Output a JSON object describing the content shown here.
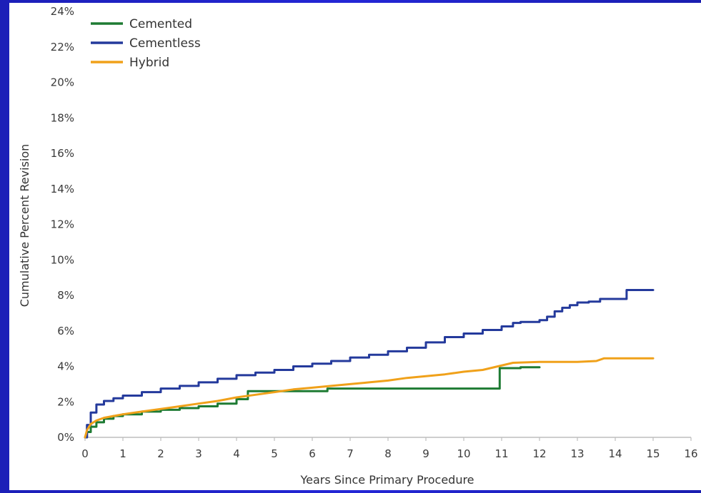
{
  "chart_data": {
    "type": "line",
    "title": "",
    "xlabel": "Years Since Primary Procedure",
    "ylabel": "Cumulative Percent Revision",
    "xlim": [
      0,
      16
    ],
    "ylim": [
      0,
      24
    ],
    "x_ticks": [
      "0",
      "1",
      "2",
      "3",
      "4",
      "5",
      "6",
      "7",
      "8",
      "9",
      "10",
      "11",
      "12",
      "13",
      "14",
      "15",
      "16"
    ],
    "y_ticks": [
      "0%",
      "2%",
      "4%",
      "6%",
      "8%",
      "10%",
      "12%",
      "14%",
      "16%",
      "18%",
      "20%",
      "22%",
      "24%"
    ],
    "grid": false,
    "legend_position": "top-left",
    "series": [
      {
        "name": "Cemented",
        "color": "#1e7b33",
        "step": true,
        "points": [
          [
            0,
            0
          ],
          [
            0.05,
            0.3
          ],
          [
            0.15,
            0.6
          ],
          [
            0.3,
            0.85
          ],
          [
            0.5,
            1.05
          ],
          [
            0.75,
            1.2
          ],
          [
            1,
            1.3
          ],
          [
            1.5,
            1.45
          ],
          [
            2,
            1.55
          ],
          [
            2.5,
            1.65
          ],
          [
            3,
            1.75
          ],
          [
            3.5,
            1.9
          ],
          [
            4,
            2.15
          ],
          [
            4.3,
            2.6
          ],
          [
            5,
            2.6
          ],
          [
            6,
            2.6
          ],
          [
            6.4,
            2.75
          ],
          [
            7,
            2.75
          ],
          [
            8,
            2.75
          ],
          [
            9,
            2.75
          ],
          [
            10,
            2.75
          ],
          [
            10.95,
            2.75
          ],
          [
            10.95,
            3.9
          ],
          [
            11.5,
            3.95
          ],
          [
            12,
            3.95
          ]
        ]
      },
      {
        "name": "Cementless",
        "color": "#243a9c",
        "step": true,
        "points": [
          [
            0,
            0
          ],
          [
            0.05,
            0.7
          ],
          [
            0.15,
            1.4
          ],
          [
            0.3,
            1.85
          ],
          [
            0.5,
            2.05
          ],
          [
            0.75,
            2.2
          ],
          [
            1,
            2.35
          ],
          [
            1.5,
            2.55
          ],
          [
            2,
            2.75
          ],
          [
            2.5,
            2.9
          ],
          [
            3,
            3.1
          ],
          [
            3.5,
            3.3
          ],
          [
            4,
            3.5
          ],
          [
            4.5,
            3.65
          ],
          [
            5,
            3.8
          ],
          [
            5.5,
            4.0
          ],
          [
            6,
            4.15
          ],
          [
            6.5,
            4.3
          ],
          [
            7,
            4.5
          ],
          [
            7.5,
            4.65
          ],
          [
            8,
            4.85
          ],
          [
            8.5,
            5.05
          ],
          [
            9,
            5.35
          ],
          [
            9.5,
            5.65
          ],
          [
            10,
            5.85
          ],
          [
            10.5,
            6.05
          ],
          [
            11,
            6.25
          ],
          [
            11.3,
            6.45
          ],
          [
            11.5,
            6.5
          ],
          [
            11.8,
            6.5
          ],
          [
            12,
            6.6
          ],
          [
            12.2,
            6.8
          ],
          [
            12.4,
            7.1
          ],
          [
            12.6,
            7.3
          ],
          [
            12.8,
            7.45
          ],
          [
            13,
            7.6
          ],
          [
            13.3,
            7.65
          ],
          [
            13.6,
            7.8
          ],
          [
            14,
            7.8
          ],
          [
            14.3,
            7.8
          ],
          [
            14.3,
            8.3
          ],
          [
            14.7,
            8.3
          ],
          [
            15,
            8.3
          ]
        ]
      },
      {
        "name": "Hybrid",
        "color": "#f0a11a",
        "step": false,
        "points": [
          [
            0,
            0
          ],
          [
            0.05,
            0.4
          ],
          [
            0.15,
            0.75
          ],
          [
            0.3,
            0.95
          ],
          [
            0.5,
            1.1
          ],
          [
            0.75,
            1.2
          ],
          [
            1,
            1.3
          ],
          [
            1.5,
            1.45
          ],
          [
            2,
            1.6
          ],
          [
            2.5,
            1.75
          ],
          [
            3,
            1.9
          ],
          [
            3.5,
            2.05
          ],
          [
            4,
            2.25
          ],
          [
            4.5,
            2.4
          ],
          [
            5,
            2.55
          ],
          [
            5.5,
            2.7
          ],
          [
            6,
            2.8
          ],
          [
            6.5,
            2.9
          ],
          [
            7,
            3.0
          ],
          [
            7.5,
            3.1
          ],
          [
            8,
            3.2
          ],
          [
            8.5,
            3.35
          ],
          [
            9,
            3.45
          ],
          [
            9.5,
            3.55
          ],
          [
            10,
            3.7
          ],
          [
            10.5,
            3.8
          ],
          [
            10.9,
            4.0
          ],
          [
            11.3,
            4.2
          ],
          [
            12,
            4.25
          ],
          [
            12.5,
            4.25
          ],
          [
            13,
            4.25
          ],
          [
            13.5,
            4.3
          ],
          [
            13.7,
            4.45
          ],
          [
            14,
            4.45
          ],
          [
            14.5,
            4.45
          ],
          [
            15,
            4.45
          ]
        ]
      }
    ]
  }
}
